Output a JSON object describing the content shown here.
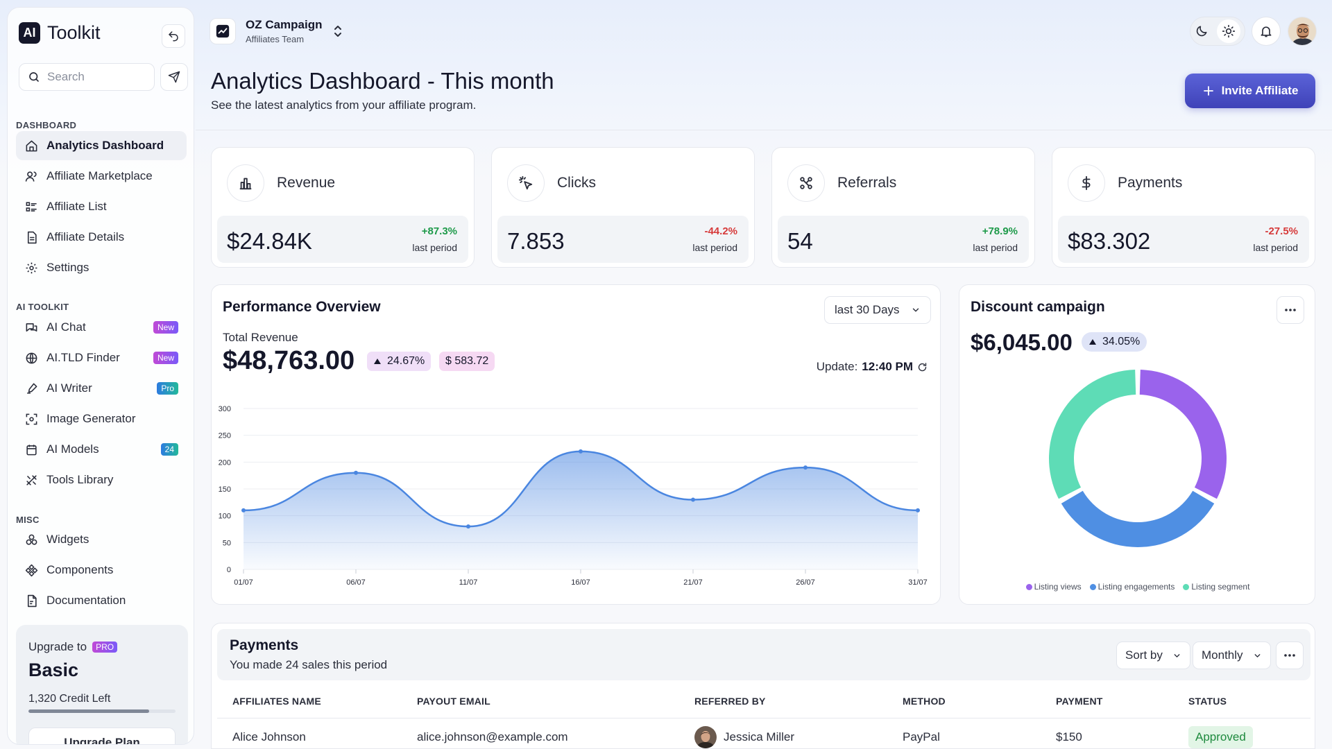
{
  "sidebar": {
    "brand_box": "AI",
    "brand_text": "Toolkit",
    "search_placeholder": "Search",
    "sections": {
      "dashboard": "DASHBOARD",
      "ai_toolkit": "AI TOOLKIT",
      "misc": "MISC"
    },
    "dashboard_items": [
      {
        "label": "Analytics Dashboard",
        "icon": "home-icon",
        "active": true
      },
      {
        "label": "Affiliate Marketplace",
        "icon": "users-icon"
      },
      {
        "label": "Affiliate List",
        "icon": "list-icon"
      },
      {
        "label": "Affiliate Details",
        "icon": "file-icon"
      },
      {
        "label": "Settings",
        "icon": "gear-icon"
      }
    ],
    "ai_items": [
      {
        "label": "AI Chat",
        "icon": "chat-icon",
        "badge": "New"
      },
      {
        "label": "AI.TLD Finder",
        "icon": "globe-icon",
        "badge": "New"
      },
      {
        "label": "AI Writer",
        "icon": "pen-icon",
        "badge": "Pro"
      },
      {
        "label": "Image Generator",
        "icon": "image-scan-icon"
      },
      {
        "label": "AI Models",
        "icon": "calendar-icon",
        "badge": "24"
      },
      {
        "label": "Tools Library",
        "icon": "tools-icon"
      }
    ],
    "misc_items": [
      {
        "label": "Widgets",
        "icon": "widgets-icon"
      },
      {
        "label": "Components",
        "icon": "components-icon"
      },
      {
        "label": "Documentation",
        "icon": "document-icon"
      }
    ],
    "upgrade": {
      "line1": "Upgrade to",
      "tag": "PRO",
      "plan": "Basic",
      "credit": "1,320 Credit Left",
      "credit_fraction": 0.82,
      "button": "Upgrade Plan"
    }
  },
  "topbar": {
    "project_name": "OZ Campaign",
    "project_team": "Affiliates Team"
  },
  "header": {
    "title": "Analytics Dashboard - This month",
    "subtitle": "See the latest analytics from your affiliate program.",
    "invite_label": "Invite Affiliate"
  },
  "stats": [
    {
      "label": "Revenue",
      "icon": "bar-chart-icon",
      "value": "$24.84K",
      "change": "+87.3%",
      "period": "last period",
      "trend": "up"
    },
    {
      "label": "Clicks",
      "icon": "click-icon",
      "value": "7.853",
      "change": "-44.2%",
      "period": "last period",
      "trend": "down"
    },
    {
      "label": "Referrals",
      "icon": "referral-icon",
      "value": "54",
      "change": "+78.9%",
      "period": "last period",
      "trend": "up"
    },
    {
      "label": "Payments",
      "icon": "dollar-icon",
      "value": "$83.302",
      "change": "-27.5%",
      "period": "last period",
      "trend": "down"
    }
  ],
  "performance": {
    "title": "Performance Overview",
    "range": "last 30 Days",
    "total_label": "Total Revenue",
    "total_value": "$48,763.00",
    "pill_percent": "24.67%",
    "pill_amount": "$ 583.72",
    "update_label": "Update:",
    "update_time": "12:40 PM"
  },
  "chart_data": {
    "type": "area",
    "x": [
      "01/07",
      "06/07",
      "11/07",
      "16/07",
      "21/07",
      "26/07",
      "31/07"
    ],
    "values": [
      110,
      180,
      80,
      220,
      130,
      190,
      110
    ],
    "ylim": [
      0,
      300
    ],
    "yticks": [
      0,
      50,
      100,
      150,
      200,
      250,
      300
    ],
    "grid": true,
    "color": "#4a86e0"
  },
  "discount": {
    "title": "Discount campaign",
    "value": "$6,045.00",
    "pill": "34.05%",
    "donut": [
      {
        "name": "Listing views",
        "value": 33,
        "color": "#9a63ec"
      },
      {
        "name": "Listing engagements",
        "value": 34,
        "color": "#4f8fe3"
      },
      {
        "name": "Listing segment",
        "value": 33,
        "color": "#5edcb6"
      }
    ]
  },
  "payments": {
    "title": "Payments",
    "subtitle": "You made 24 sales this period",
    "sort_label": "Sort by",
    "period_label": "Monthly",
    "columns": [
      "AFFILIATES NAME",
      "PAYOUT EMAIL",
      "REFERRED BY",
      "METHOD",
      "PAYMENT",
      "STATUS"
    ],
    "rows": [
      {
        "name": "Alice Johnson",
        "email": "alice.johnson@example.com",
        "referred_by": "Jessica Miller",
        "method": "PayPal",
        "payment": "$150",
        "status": "Approved"
      }
    ]
  }
}
